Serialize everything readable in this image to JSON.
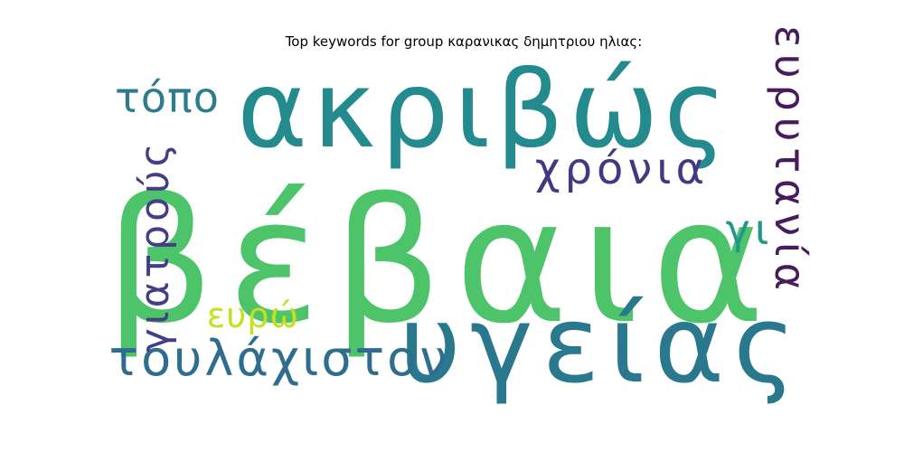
{
  "chart_data": {
    "type": "wordcloud",
    "title": "Top keywords for group καρανικας δημητριου ηλιας:",
    "words": [
      {
        "text": "βέβαια",
        "rank": 1,
        "color": "#4ec46a"
      },
      {
        "text": "ακριβώς",
        "rank": 2,
        "color": "#238a8d"
      },
      {
        "text": "υγείας",
        "rank": 3,
        "color": "#2a788e"
      },
      {
        "text": "τουλάχιστον",
        "rank": 4,
        "color": "#2f6d8e"
      },
      {
        "text": "χρόνια",
        "rank": 5,
        "color": "#453781"
      },
      {
        "text": "ευρυτανία",
        "rank": 6,
        "color": "#481b5c"
      },
      {
        "text": "γιατρούς",
        "rank": 7,
        "color": "#433e85"
      },
      {
        "text": "τόπο",
        "rank": 8,
        "color": "#2e7b8e"
      },
      {
        "text": "γι",
        "rank": 9,
        "color": "#23978a"
      },
      {
        "text": "ευρώ",
        "rank": 10,
        "color": "#c5e021"
      }
    ]
  }
}
